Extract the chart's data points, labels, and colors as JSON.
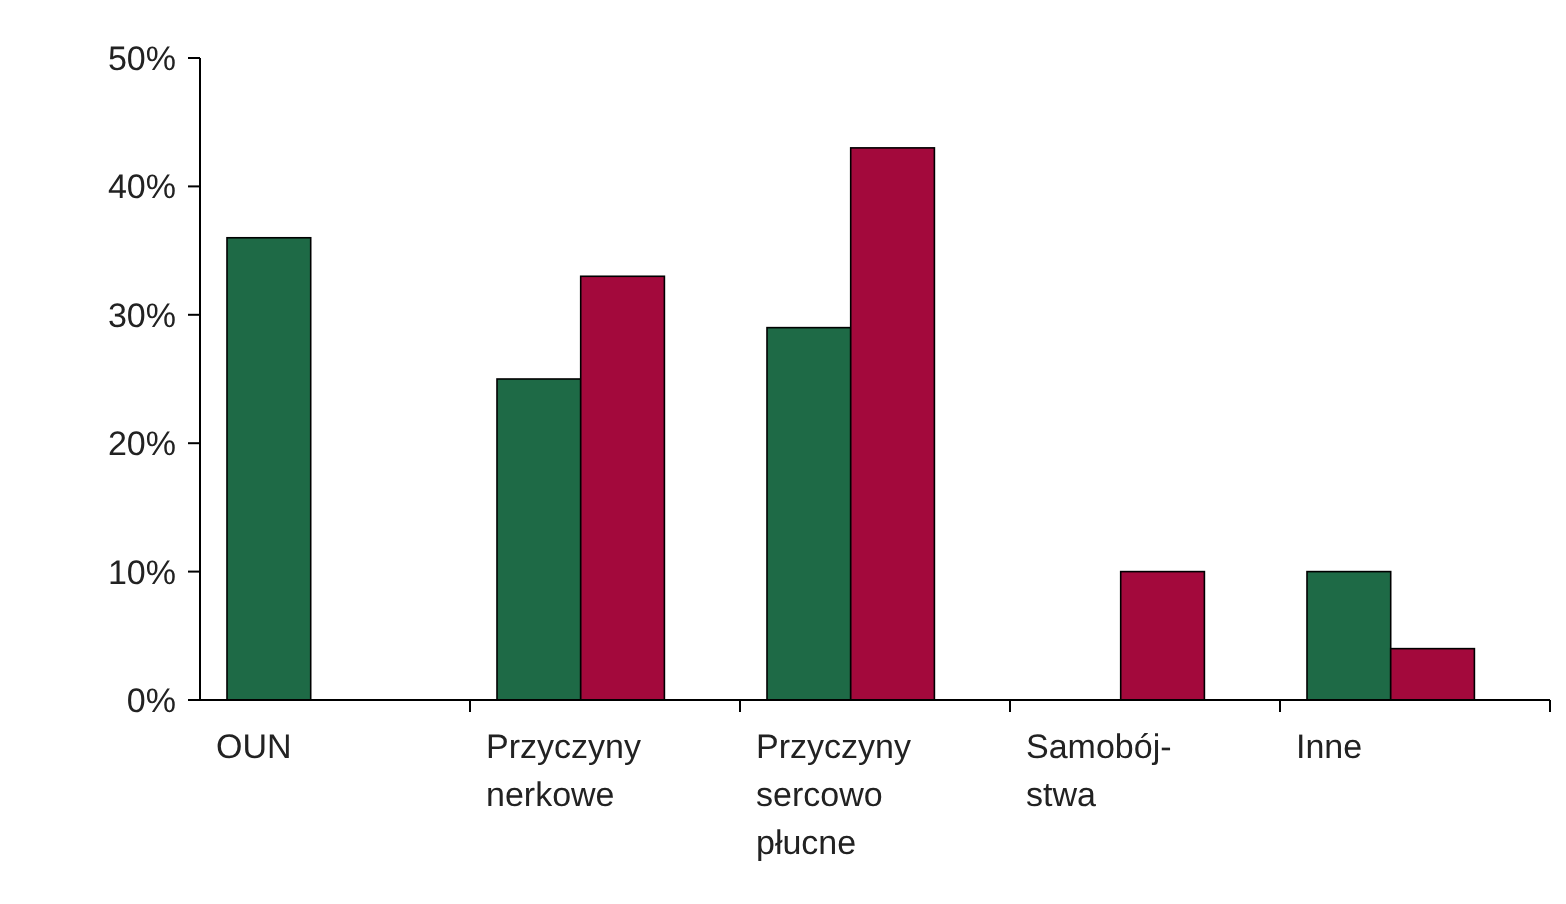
{
  "chart_data": {
    "type": "bar",
    "categories": [
      "OUN",
      "Przyczyny\nnerkowe",
      "Przyczyny\nsercowo\npłucne",
      "Samobój-\nstwa",
      "Inne"
    ],
    "series": [
      {
        "color": "#1e6a46",
        "values": [
          36,
          25,
          29,
          null,
          10
        ]
      },
      {
        "color": "#a3093c",
        "values": [
          null,
          33,
          43,
          10,
          4
        ]
      }
    ],
    "ylim": [
      0,
      50
    ],
    "yticks": [
      {
        "value": 0,
        "label": "0%"
      },
      {
        "value": 10,
        "label": "10%"
      },
      {
        "value": 20,
        "label": "20%"
      },
      {
        "value": 30,
        "label": "30%"
      },
      {
        "value": 40,
        "label": "40%"
      },
      {
        "value": 50,
        "label": "50%"
      }
    ]
  }
}
